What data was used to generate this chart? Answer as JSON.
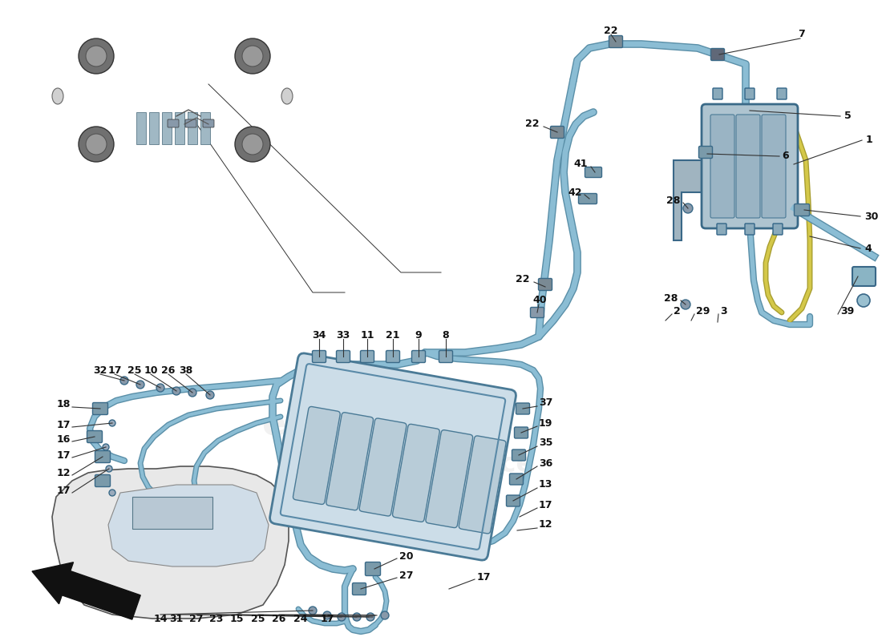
{
  "bg_color": "#ffffff",
  "line_color": "#2a2a2a",
  "pipe_blue": "#8bbdd4",
  "pipe_blue_dark": "#5a8fa8",
  "pipe_yellow": "#d4c84a",
  "pipe_yellow_dark": "#a89e30",
  "component_fill": "#a8c4d8",
  "component_edge": "#3a6a88",
  "engine_fill": "#c8dce8",
  "engine_edge": "#4a7a9a",
  "car_fill": "#e8e8e8",
  "car_edge": "#555555",
  "canister_fill": "#b8ccd8",
  "bracket_fill": "#a8b8c8",
  "connector_fill": "#7a9aaa",
  "label_color": "#111111",
  "leader_color": "#333333",
  "watermark1": "europassion",
  "watermark2": "passion since",
  "wm_color": "#c8c8c8",
  "wm_alpha": 0.25
}
